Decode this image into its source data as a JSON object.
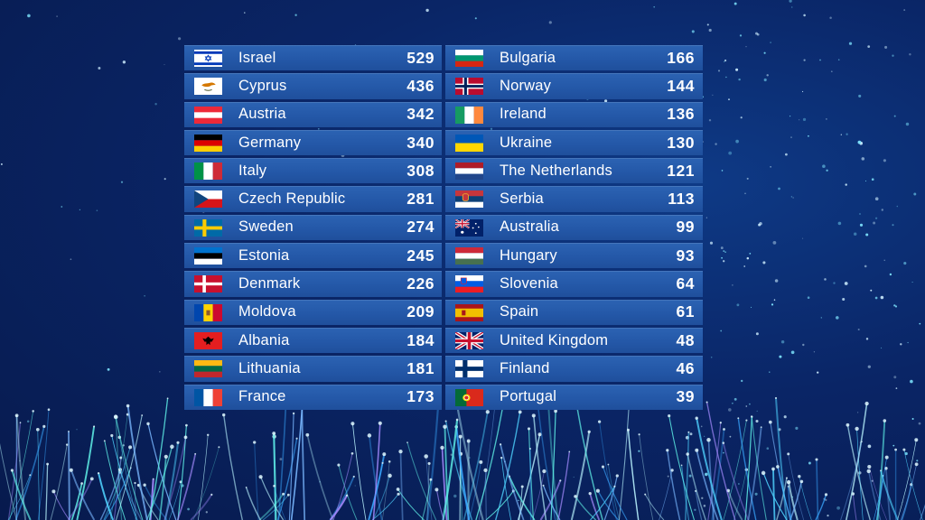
{
  "scoreboard": {
    "left": [
      {
        "country": "Israel",
        "points": "529",
        "flag": "israel-flag-icon"
      },
      {
        "country": "Cyprus",
        "points": "436",
        "flag": "cyprus-flag-icon"
      },
      {
        "country": "Austria",
        "points": "342",
        "flag": "austria-flag-icon"
      },
      {
        "country": "Germany",
        "points": "340",
        "flag": "germany-flag-icon"
      },
      {
        "country": "Italy",
        "points": "308",
        "flag": "italy-flag-icon"
      },
      {
        "country": "Czech Republic",
        "points": "281",
        "flag": "czech-republic-flag-icon"
      },
      {
        "country": "Sweden",
        "points": "274",
        "flag": "sweden-flag-icon"
      },
      {
        "country": "Estonia",
        "points": "245",
        "flag": "estonia-flag-icon"
      },
      {
        "country": "Denmark",
        "points": "226",
        "flag": "denmark-flag-icon"
      },
      {
        "country": "Moldova",
        "points": "209",
        "flag": "moldova-flag-icon"
      },
      {
        "country": "Albania",
        "points": "184",
        "flag": "albania-flag-icon"
      },
      {
        "country": "Lithuania",
        "points": "181",
        "flag": "lithuania-flag-icon"
      },
      {
        "country": "France",
        "points": "173",
        "flag": "france-flag-icon"
      }
    ],
    "right": [
      {
        "country": "Bulgaria",
        "points": "166",
        "flag": "bulgaria-flag-icon"
      },
      {
        "country": "Norway",
        "points": "144",
        "flag": "norway-flag-icon"
      },
      {
        "country": "Ireland",
        "points": "136",
        "flag": "ireland-flag-icon"
      },
      {
        "country": "Ukraine",
        "points": "130",
        "flag": "ukraine-flag-icon"
      },
      {
        "country": "The Netherlands",
        "points": "121",
        "flag": "netherlands-flag-icon"
      },
      {
        "country": "Serbia",
        "points": "113",
        "flag": "serbia-flag-icon"
      },
      {
        "country": "Australia",
        "points": "99",
        "flag": "australia-flag-icon"
      },
      {
        "country": "Hungary",
        "points": "93",
        "flag": "hungary-flag-icon"
      },
      {
        "country": "Slovenia",
        "points": "64",
        "flag": "slovenia-flag-icon"
      },
      {
        "country": "Spain",
        "points": "61",
        "flag": "spain-flag-icon"
      },
      {
        "country": "United Kingdom",
        "points": "48",
        "flag": "united-kingdom-flag-icon"
      },
      {
        "country": "Finland",
        "points": "46",
        "flag": "finland-flag-icon"
      },
      {
        "country": "Portugal",
        "points": "39",
        "flag": "portugal-flag-icon"
      }
    ]
  },
  "colors": {
    "background": "#0a2566",
    "row": "#2458a8",
    "text": "#ffffff"
  }
}
